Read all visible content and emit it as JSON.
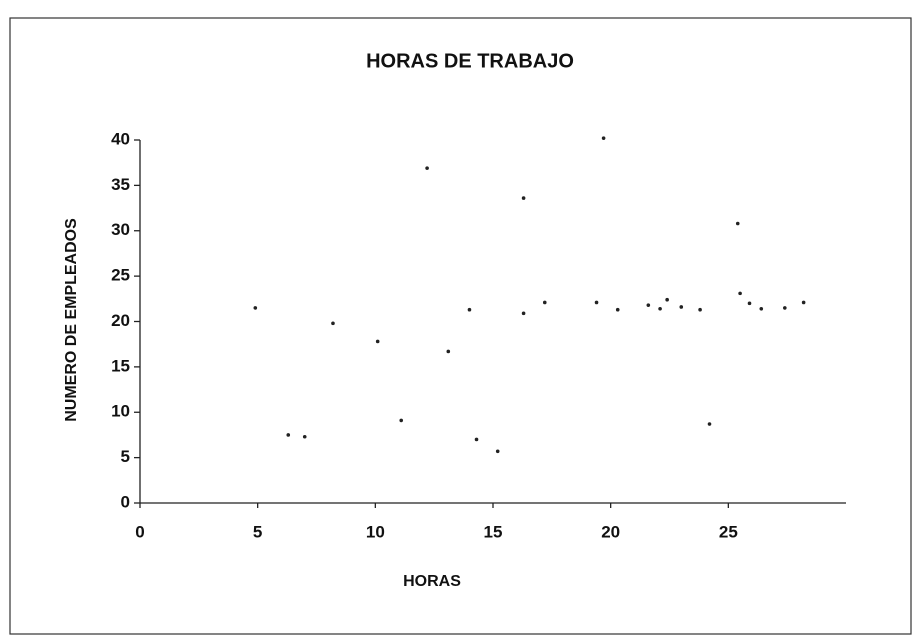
{
  "chart_data": {
    "type": "scatter",
    "title": "HORAS DE TRABAJO",
    "x_label": "HORAS",
    "y_label": "NUMERO DE EMPLEADOS",
    "color": "#222222",
    "x": [
      4.9,
      6.3,
      7.0,
      8.2,
      10.1,
      11.1,
      12.2,
      13.1,
      14.0,
      14.3,
      15.2,
      16.3,
      16.3,
      17.2,
      19.4,
      19.7,
      20.3,
      21.6,
      22.1,
      22.4,
      23.0,
      23.8,
      24.2,
      25.4,
      25.5,
      25.9,
      26.4,
      27.4,
      28.2
    ],
    "values": [
      21.5,
      7.5,
      7.3,
      19.8,
      17.8,
      9.1,
      36.9,
      16.7,
      21.3,
      7.0,
      5.7,
      20.9,
      33.6,
      22.1,
      22.1,
      40.2,
      21.3,
      21.8,
      21.4,
      22.4,
      21.6,
      21.3,
      8.7,
      30.8,
      23.1,
      22.0,
      21.4,
      21.5,
      22.1
    ],
    "xlim": [
      0,
      30
    ],
    "xticks": [
      0,
      5,
      10,
      15,
      20,
      25
    ],
    "ylim": [
      0,
      40
    ],
    "yticks": [
      0,
      5,
      10,
      15,
      20,
      25,
      30,
      35,
      40
    ]
  }
}
